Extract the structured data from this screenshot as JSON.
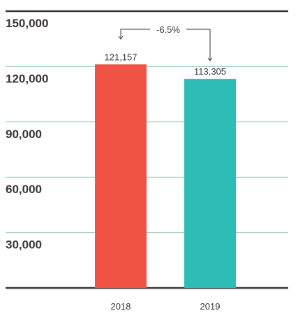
{
  "chart_data": {
    "type": "bar",
    "categories": [
      "2018",
      "2019"
    ],
    "values": [
      121157,
      113305
    ],
    "value_labels": [
      "121,157",
      "113,305"
    ],
    "colors": [
      "#f05343",
      "#2dbdb6"
    ],
    "ylim": [
      0,
      150000
    ],
    "yticks": [
      30000,
      60000,
      90000,
      120000,
      150000
    ],
    "ytick_labels": [
      "30,000",
      "60,000",
      "90,000",
      "120,000",
      "150,000"
    ],
    "grid": true,
    "title": "",
    "xlabel": "",
    "ylabel": "",
    "annotation": {
      "text": "-6.5%",
      "from": "2018",
      "to": "2019"
    }
  }
}
